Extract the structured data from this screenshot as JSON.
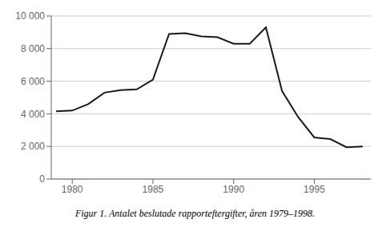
{
  "chart_data": {
    "type": "line",
    "title": "Figur 1. Antalet beslutade rapporteftergifter, åren 1979–1998.",
    "x": [
      1979,
      1980,
      1981,
      1982,
      1983,
      1984,
      1985,
      1986,
      1987,
      1988,
      1989,
      1990,
      1991,
      1992,
      1993,
      1994,
      1995,
      1996,
      1997,
      1998
    ],
    "values": [
      4150,
      4200,
      4600,
      5300,
      5450,
      5500,
      6100,
      8900,
      8950,
      8750,
      8700,
      8300,
      8300,
      9300,
      5400,
      3800,
      2550,
      2450,
      1950,
      2000
    ],
    "color": "#1a1a1a",
    "xlim": [
      1978.7,
      1998.5
    ],
    "ylim": [
      0,
      10000
    ],
    "xticks": [
      1980,
      1985,
      1990,
      1995
    ],
    "yticks": [
      0,
      {
        "value": 2000,
        "label": "2 000"
      },
      {
        "value": 4000,
        "label": "4 000"
      },
      {
        "value": 6000,
        "label": "6 000"
      },
      {
        "value": 8000,
        "label": "8 000"
      },
      {
        "value": 10000,
        "label": "10 000"
      }
    ],
    "grid": true
  }
}
